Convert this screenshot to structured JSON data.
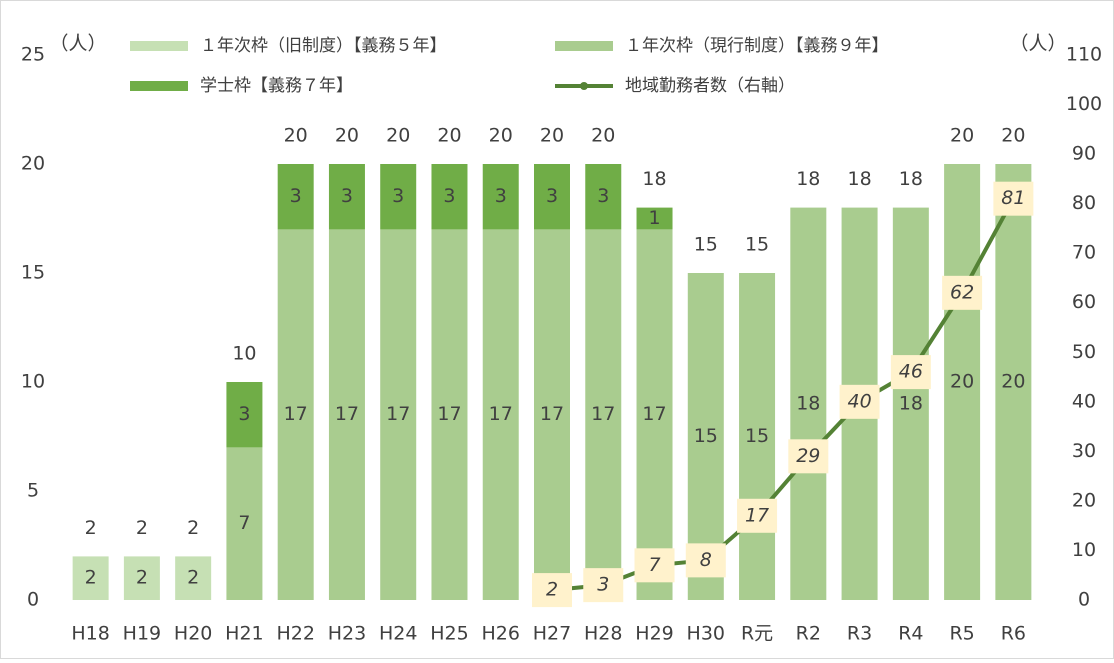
{
  "chart_data": {
    "type": "bar",
    "y_unit_label": "（人）",
    "y2_unit_label": "（人）",
    "categories": [
      "H18",
      "H19",
      "H20",
      "H21",
      "H22",
      "H23",
      "H24",
      "H25",
      "H26",
      "H27",
      "H28",
      "H29",
      "H30",
      "R元",
      "R2",
      "R3",
      "R4",
      "R5",
      "R6"
    ],
    "series": [
      {
        "name": "１年次枠（旧制度）【義務５年】",
        "color": "#c6e0b4",
        "values": [
          2,
          2,
          2,
          null,
          null,
          null,
          null,
          null,
          null,
          null,
          null,
          null,
          null,
          null,
          null,
          null,
          null,
          null,
          null
        ]
      },
      {
        "name": "１年次枠（現行制度）【義務９年】",
        "color": "#a9cc8f",
        "values": [
          null,
          null,
          null,
          7,
          17,
          17,
          17,
          17,
          17,
          17,
          17,
          17,
          15,
          15,
          18,
          18,
          18,
          20,
          20
        ]
      },
      {
        "name": "学士枠【義務７年】",
        "color": "#70ad47",
        "values": [
          null,
          null,
          null,
          3,
          3,
          3,
          3,
          3,
          3,
          3,
          3,
          1,
          null,
          null,
          null,
          null,
          null,
          null,
          null
        ]
      },
      {
        "name": "地域勤務者数（右軸）",
        "color": "#548235",
        "type": "line",
        "axis": "y2",
        "values": [
          null,
          null,
          null,
          null,
          null,
          null,
          null,
          null,
          null,
          2,
          3,
          7,
          8,
          17,
          29,
          40,
          46,
          62,
          81
        ]
      }
    ],
    "totals": [
      2,
      2,
      2,
      10,
      20,
      20,
      20,
      20,
      20,
      20,
      20,
      18,
      15,
      15,
      18,
      18,
      18,
      20,
      20
    ],
    "ylim": [
      0,
      25
    ],
    "yticks": [
      0,
      5,
      10,
      15,
      20,
      25
    ],
    "y2lim": [
      0,
      110
    ],
    "y2ticks": [
      0,
      10,
      20,
      30,
      40,
      50,
      60,
      70,
      80,
      90,
      100,
      110
    ]
  }
}
